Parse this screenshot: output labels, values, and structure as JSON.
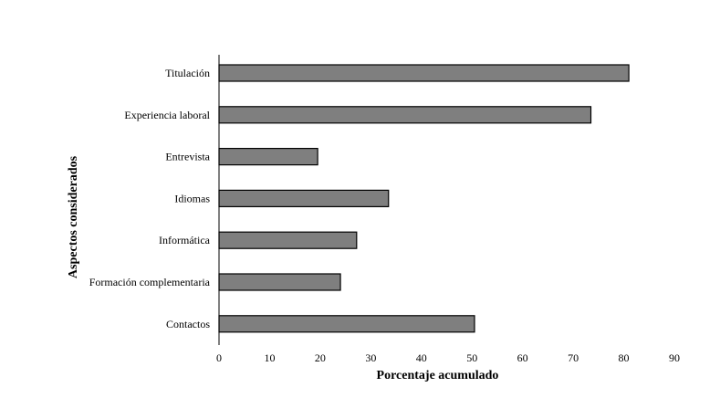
{
  "chart_data": {
    "type": "bar",
    "orientation": "horizontal",
    "title": "",
    "xlabel": "Porcentaje acumulado",
    "ylabel": "Aspectos considerados",
    "categories": [
      "Titulación",
      "Experiencia laboral",
      "Entrevista",
      "Idiomas",
      "Informática",
      "Formación complementaria",
      "Contactos"
    ],
    "values": [
      81,
      73.5,
      19.5,
      33.5,
      27.2,
      24,
      50.5
    ],
    "xlim": [
      0,
      90
    ],
    "xticks": [
      "0",
      "10",
      "20",
      "30",
      "40",
      "50",
      "60",
      "70",
      "80",
      "90"
    ],
    "grid": false,
    "legend": "none",
    "bar_color": "#7f7f7f",
    "bar_edge_color": "#000000"
  }
}
